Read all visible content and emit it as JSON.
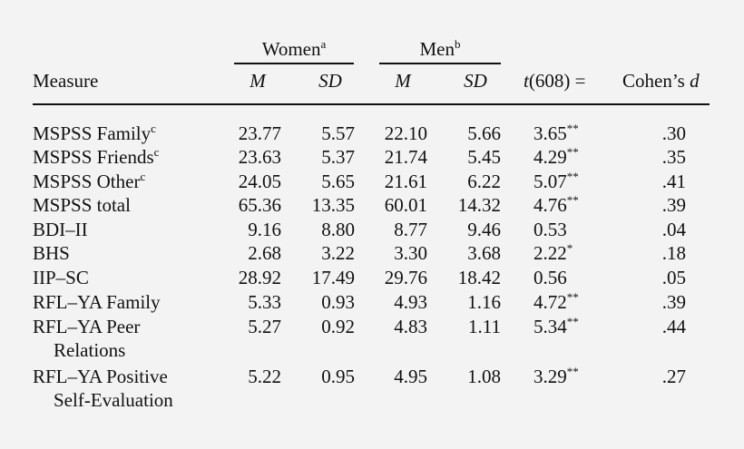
{
  "table": {
    "group_headers": [
      {
        "label": "Women",
        "note": "a"
      },
      {
        "label": "Men",
        "note": "b"
      }
    ],
    "col_headers": {
      "measure": "Measure",
      "women_m": "M",
      "women_sd": "SD",
      "men_m": "M",
      "men_sd": "SD",
      "t_label_t": "t",
      "t_label_rest": "(608) =",
      "d_label_prefix": "Cohen’s ",
      "d_label_d": "d"
    },
    "rows": [
      {
        "measure": "MSPSS Family",
        "note": "c",
        "measure2": "",
        "wm": "23.77",
        "wsd": "5.57",
        "mm": "22.10",
        "msd": "5.66",
        "t": "3.65",
        "sig": "**",
        "d": ".30"
      },
      {
        "measure": "MSPSS Friends",
        "note": "c",
        "measure2": "",
        "wm": "23.63",
        "wsd": "5.37",
        "mm": "21.74",
        "msd": "5.45",
        "t": "4.29",
        "sig": "**",
        "d": ".35"
      },
      {
        "measure": "MSPSS Other",
        "note": "c",
        "measure2": "",
        "wm": "24.05",
        "wsd": "5.65",
        "mm": "21.61",
        "msd": "6.22",
        "t": "5.07",
        "sig": "**",
        "d": ".41"
      },
      {
        "measure": "MSPSS total",
        "note": "",
        "measure2": "",
        "wm": "65.36",
        "wsd": "13.35",
        "mm": "60.01",
        "msd": "14.32",
        "t": "4.76",
        "sig": "**",
        "d": ".39"
      },
      {
        "measure": "BDI–II",
        "note": "",
        "measure2": "",
        "wm": "9.16",
        "wsd": "8.80",
        "mm": "8.77",
        "msd": "9.46",
        "t": "0.53",
        "sig": "",
        "d": ".04"
      },
      {
        "measure": "BHS",
        "note": "",
        "measure2": "",
        "wm": "2.68",
        "wsd": "3.22",
        "mm": "3.30",
        "msd": "3.68",
        "t": "2.22",
        "sig": "*",
        "d": ".18"
      },
      {
        "measure": "IIP–SC",
        "note": "",
        "measure2": "",
        "wm": "28.92",
        "wsd": "17.49",
        "mm": "29.76",
        "msd": "18.42",
        "t": "0.56",
        "sig": "",
        "d": ".05"
      },
      {
        "measure": "RFL–YA Family",
        "note": "",
        "measure2": "",
        "wm": "5.33",
        "wsd": "0.93",
        "mm": "4.93",
        "msd": "1.16",
        "t": "4.72",
        "sig": "**",
        "d": ".39"
      },
      {
        "measure": "RFL–YA Peer",
        "note": "",
        "measure2": "Relations",
        "wm": "5.27",
        "wsd": "0.92",
        "mm": "4.83",
        "msd": "1.11",
        "t": "5.34",
        "sig": "**",
        "d": ".44"
      },
      {
        "measure": "RFL–YA Positive",
        "note": "",
        "measure2": "Self-Evaluation",
        "wm": "5.22",
        "wsd": "0.95",
        "mm": "4.95",
        "msd": "1.08",
        "t": "3.29",
        "sig": "**",
        "d": ".27"
      }
    ]
  }
}
